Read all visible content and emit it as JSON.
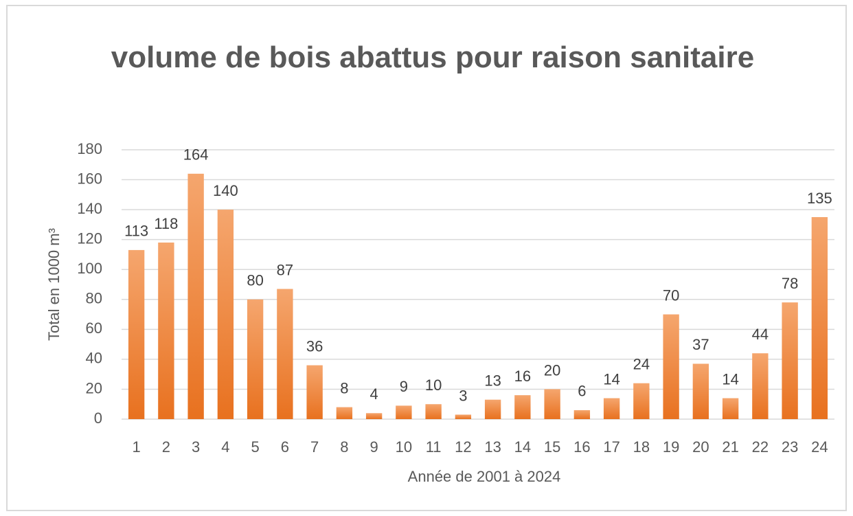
{
  "chart_data": {
    "type": "bar",
    "title": "volume de bois abattus pour raison sanitaire",
    "x_label": "Année de 2001 à 2024",
    "y_label": "Total en 1000 m³",
    "categories": [
      "1",
      "2",
      "3",
      "4",
      "5",
      "6",
      "7",
      "8",
      "9",
      "10",
      "11",
      "12",
      "13",
      "14",
      "15",
      "16",
      "17",
      "18",
      "19",
      "20",
      "21",
      "22",
      "23",
      "24"
    ],
    "values": [
      113,
      118,
      164,
      140,
      80,
      87,
      36,
      8,
      4,
      9,
      10,
      3,
      13,
      16,
      20,
      6,
      14,
      24,
      70,
      37,
      14,
      44,
      78,
      135
    ],
    "color": "#ed7d31",
    "ylim": [
      0,
      180
    ],
    "yticks": [
      0,
      20,
      40,
      60,
      80,
      100,
      120,
      140,
      160,
      180
    ],
    "grid": true
  }
}
